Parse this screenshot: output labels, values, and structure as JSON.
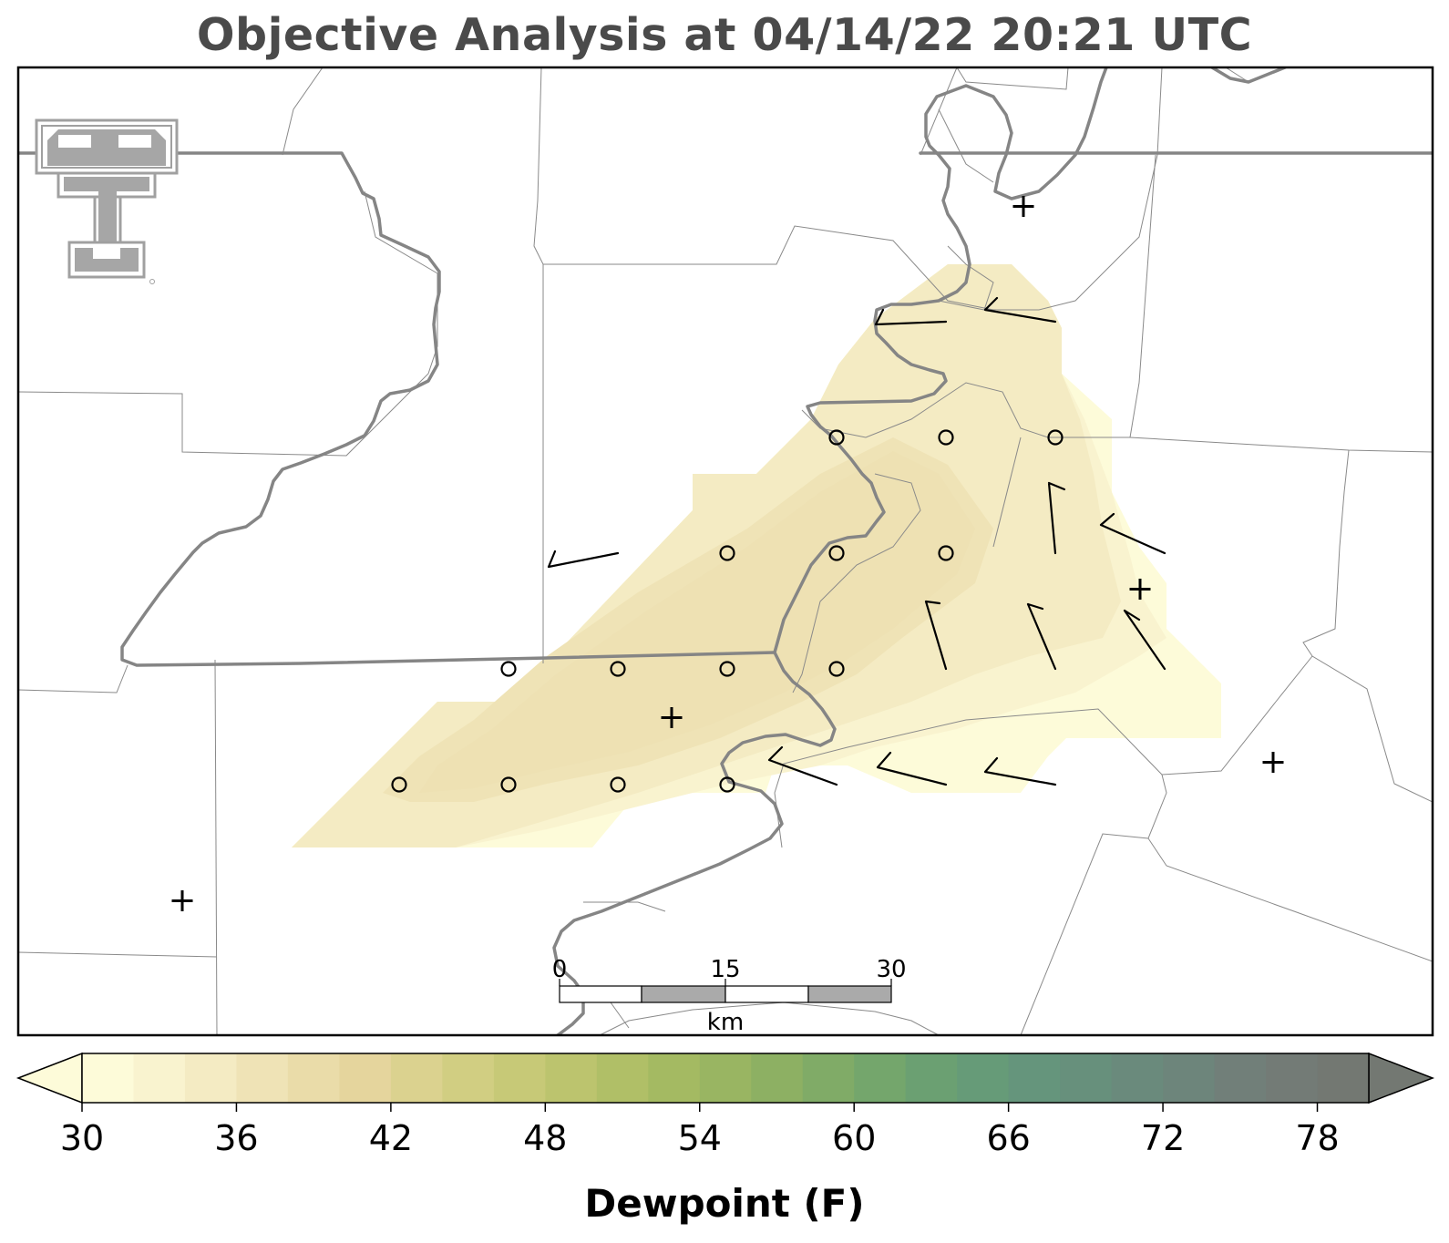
{
  "title": "Objective Analysis at 04/14/22 20:21 UTC",
  "colorbar": {
    "label": "Dewpoint (F)",
    "min": 30,
    "max": 80,
    "step": 2,
    "ticks": [
      30,
      36,
      42,
      48,
      54,
      60,
      66,
      72,
      78
    ],
    "colors": [
      "#fdfbd9",
      "#f9f3cf",
      "#f4ebc3",
      "#efe3b6",
      "#eadca9",
      "#e5d59d",
      "#dbd28f",
      "#d1ce82",
      "#c7c977",
      "#bcc46e",
      "#b0bf67",
      "#a4ba62",
      "#99b562",
      "#8db063",
      "#80ab67",
      "#74a66c",
      "#6ba072",
      "#669b78",
      "#65957c",
      "#67907c",
      "#6a8a7c",
      "#6d857b",
      "#717f79",
      "#737b76",
      "#737872"
    ],
    "extend_low_color": "#fdfbd9",
    "extend_high_color": "#737872"
  },
  "scale_bar": {
    "labels": [
      "0",
      "15",
      "30"
    ],
    "unit": "km"
  },
  "logo": {
    "name": "Texas Tech Double T",
    "color": "#a0a0a0"
  },
  "map": {
    "projection": "regional",
    "fill_field": "Dewpoint (F)",
    "dewpoint_band_levels": [
      30,
      32,
      34,
      36,
      38
    ],
    "symbols": {
      "calm_station": "circle",
      "missing_station": "plus",
      "wind": "barb"
    },
    "stations_calm_count": 14,
    "stations_missing_count": 6,
    "wind_barb_count": 12
  }
}
